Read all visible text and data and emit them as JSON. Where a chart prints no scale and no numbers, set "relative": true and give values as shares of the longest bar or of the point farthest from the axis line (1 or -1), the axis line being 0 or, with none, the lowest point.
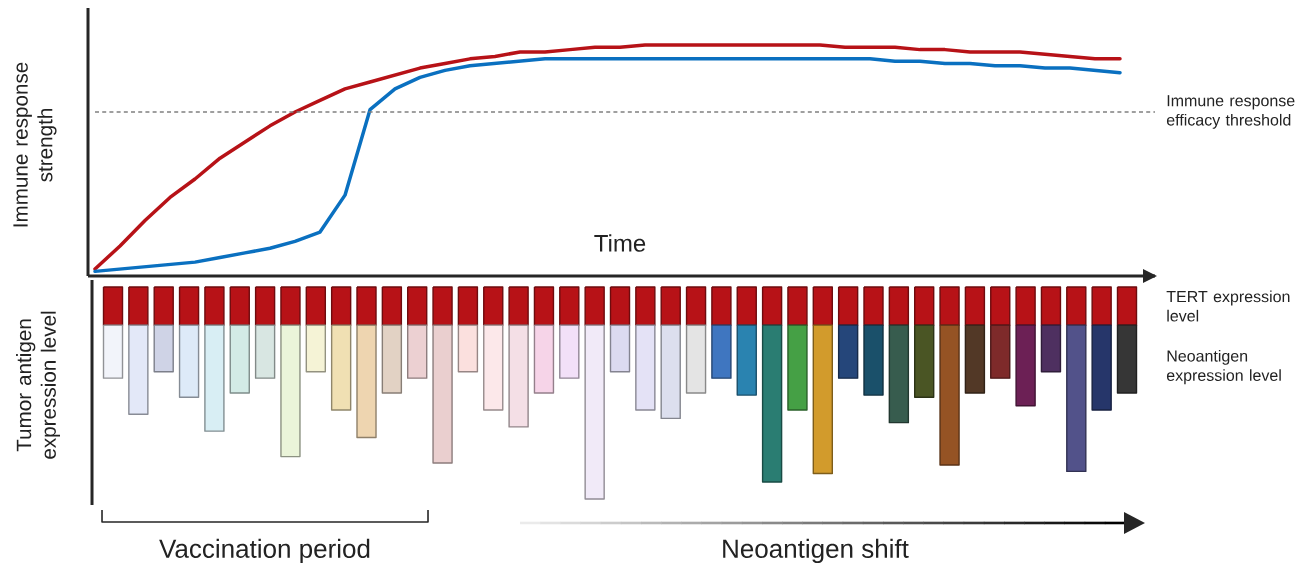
{
  "chart_data": [
    {
      "type": "line",
      "relative": true,
      "xlabel": "Time",
      "ylabel": "Immune response strength",
      "categories": [
        null,
        null,
        null,
        null,
        null,
        null,
        null,
        null,
        null,
        null,
        null,
        null,
        null,
        null,
        null,
        null,
        null,
        null,
        null,
        null,
        null,
        null,
        null,
        null,
        null,
        null,
        null,
        null,
        null,
        null,
        null,
        null,
        null,
        null,
        null,
        null,
        null,
        null,
        null,
        null,
        null,
        null
      ],
      "series": [
        {
          "color": "#b71217",
          "values": [
            0.03,
            0.13,
            0.24,
            0.34,
            0.42,
            0.51,
            0.58,
            0.65,
            0.71,
            0.76,
            0.81,
            0.84,
            0.87,
            0.9,
            0.92,
            0.94,
            0.95,
            0.97,
            0.97,
            0.98,
            0.99,
            0.99,
            1.0,
            1.0,
            1.0,
            1.0,
            1.0,
            1.0,
            1.0,
            1.0,
            0.99,
            0.99,
            0.99,
            0.98,
            0.98,
            0.97,
            0.97,
            0.97,
            0.96,
            0.95,
            0.94,
            0.94
          ]
        },
        {
          "color": "#0a70c0",
          "values": [
            0.02,
            0.03,
            0.04,
            0.05,
            0.06,
            0.08,
            0.1,
            0.12,
            0.15,
            0.19,
            0.35,
            0.72,
            0.81,
            0.86,
            0.89,
            0.91,
            0.92,
            0.93,
            0.94,
            0.94,
            0.94,
            0.94,
            0.94,
            0.94,
            0.94,
            0.94,
            0.94,
            0.94,
            0.94,
            0.94,
            0.94,
            0.94,
            0.93,
            0.93,
            0.92,
            0.92,
            0.91,
            0.91,
            0.9,
            0.9,
            0.89,
            0.88
          ]
        }
      ],
      "ref_lines": [
        {
          "axis": "y",
          "value": 0.71,
          "label": "Immune response efficacy threshold",
          "color": "#808080",
          "line_style": "dashed"
        }
      ]
    },
    {
      "type": "bar",
      "relative": true,
      "stacked": true,
      "ylabel": "Tumor antigen expression level",
      "categories": [
        null,
        null,
        null,
        null,
        null,
        null,
        null,
        null,
        null,
        null,
        null,
        null,
        null,
        null,
        null,
        null,
        null,
        null,
        null,
        null,
        null,
        null,
        null,
        null,
        null,
        null,
        null,
        null,
        null,
        null,
        null,
        null,
        null,
        null,
        null,
        null,
        null,
        null,
        null,
        null,
        null
      ],
      "series": [
        {
          "name": "TERT expression level",
          "color": "#b71217",
          "values": [
            -0.18,
            -0.18,
            -0.18,
            -0.18,
            -0.18,
            -0.18,
            -0.18,
            -0.18,
            -0.18,
            -0.18,
            -0.18,
            -0.18,
            -0.18,
            -0.18,
            -0.18,
            -0.18,
            -0.18,
            -0.18,
            -0.18,
            -0.18,
            -0.18,
            -0.18,
            -0.18,
            -0.18,
            -0.18,
            -0.18,
            -0.18,
            -0.18,
            -0.18,
            -0.18,
            -0.18,
            -0.18,
            -0.18,
            -0.18,
            -0.18,
            -0.18,
            -0.18,
            -0.18,
            -0.18,
            -0.18,
            -0.18
          ]
        },
        {
          "name": "Neoantigen expression level",
          "colors": [
            "#f2f4fa",
            "#e3e8f8",
            "#cfd3e6",
            "#ddeaf8",
            "#d8eef4",
            "#d3ebe6",
            "#d8e6e2",
            "#eaf4d9",
            "#f5f3d6",
            "#f0e0b3",
            "#eed5b0",
            "#e2d2c4",
            "#ecd0d2",
            "#eacfcf",
            "#fbe0de",
            "#fce8ea",
            "#f4dfe6",
            "#f6d4e8",
            "#f2e0f8",
            "#f1eaf8",
            "#dcdaf0",
            "#e4e2f6",
            "#dcdfee",
            "#e4e4e4",
            "#3f76c0",
            "#2a83b0",
            "#2a7d72",
            "#45a045",
            "#d29b2c",
            "#25467a",
            "#1a506a",
            "#375c4e",
            "#4a5524",
            "#955324",
            "#523826",
            "#7e2a2a",
            "#6c2055",
            "#4e3060",
            "#52528a",
            "#26366a",
            "#363636"
          ],
          "values": [
            -0.25,
            -0.42,
            -0.22,
            -0.34,
            -0.5,
            -0.32,
            -0.25,
            -0.62,
            -0.22,
            -0.4,
            -0.53,
            -0.32,
            -0.25,
            -0.65,
            -0.22,
            -0.4,
            -0.48,
            -0.32,
            -0.25,
            -0.82,
            -0.22,
            -0.4,
            -0.44,
            -0.32,
            -0.25,
            -0.33,
            -0.74,
            -0.4,
            -0.7,
            -0.25,
            -0.33,
            -0.46,
            -0.34,
            -0.66,
            -0.32,
            -0.25,
            -0.38,
            -0.22,
            -0.69,
            -0.4,
            -0.32
          ]
        }
      ],
      "annotations": [
        "Vaccination period",
        "Neoantigen shift"
      ]
    }
  ]
}
